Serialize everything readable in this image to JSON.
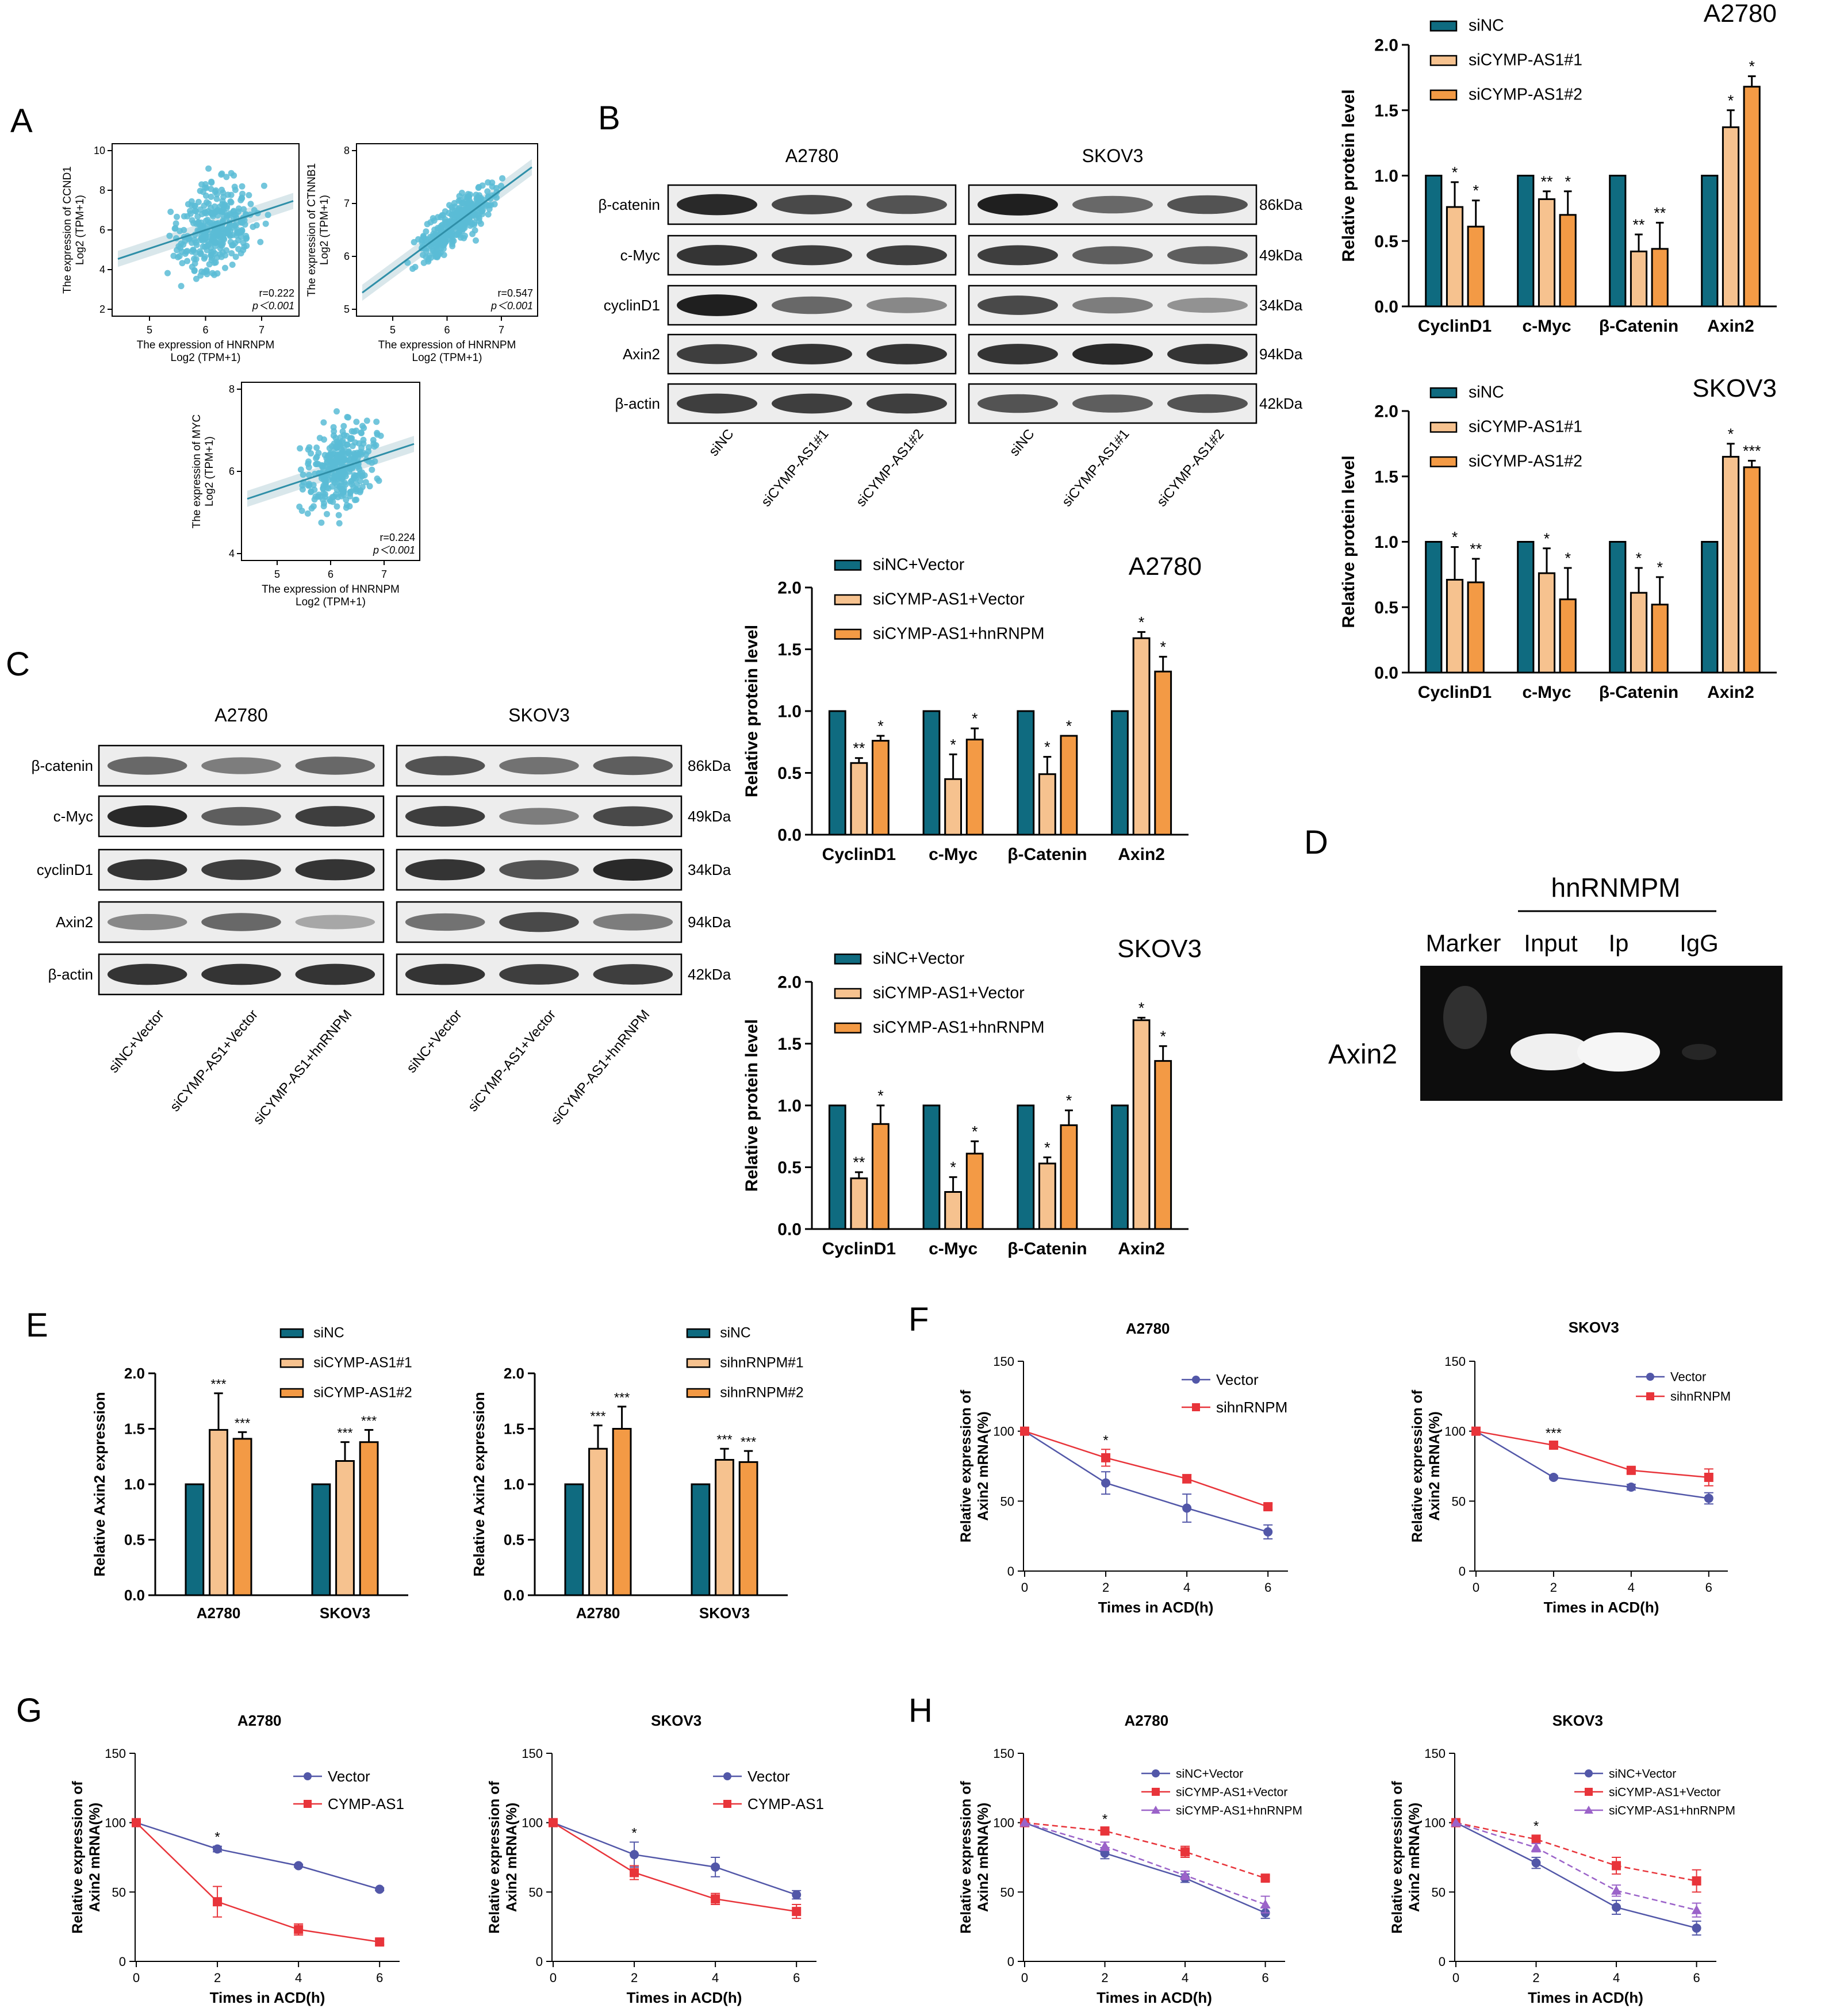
{
  "panel_letters": {
    "A": "A",
    "B": "B",
    "C": "C",
    "D": "D",
    "E": "E",
    "F": "F",
    "G": "G",
    "H": "H"
  },
  "colors": {
    "teal": "#0f6b80",
    "light": "#f6c28f",
    "orange": "#f39a45",
    "scatter": "#5bbcd6",
    "blue": "#5257a8",
    "red": "#e8343a",
    "purple": "#9b63c9",
    "gel_bg": "#0d0d0d",
    "band": "#2a2a2a"
  },
  "scatter_plots": [
    {
      "ylabel1": "The expression of CCND1",
      "ylabel2": "Log2 (TPM+1)",
      "xlabel1": "The expression of HNRNPM",
      "xlabel2": "Log2 (TPM+1)",
      "r": "r=0.222",
      "p": "p＜0.001",
      "xticks": [
        "5",
        "6",
        "7"
      ],
      "yticks": [
        "2",
        "4",
        "6",
        "8",
        "10"
      ]
    },
    {
      "ylabel1": "The expression of CTNNB1",
      "ylabel2": "Log2 (TPM+1)",
      "xlabel1": "The expression of HNRNPM",
      "xlabel2": "Log2 (TPM+1)",
      "r": "r=0.547",
      "p": "p＜0.001",
      "xticks": [
        "5",
        "6",
        "7"
      ],
      "yticks": [
        "5",
        "6",
        "7",
        "8"
      ]
    },
    {
      "ylabel1": "The expression of MYC",
      "ylabel2": "Log2 (TPM+1)",
      "xlabel1": "The expression of HNRNPM",
      "xlabel2": "Log2 (TPM+1)",
      "r": "r=0.224",
      "p": "p＜0.001",
      "xticks": [
        "5",
        "6",
        "7"
      ],
      "yticks": [
        "4",
        "6",
        "8"
      ]
    }
  ],
  "blot_B": {
    "cell_lines": [
      "A2780",
      "SKOV3"
    ],
    "proteins": [
      "β-catenin",
      "c-Myc",
      "cyclinD1",
      "Axin2",
      "β-actin"
    ],
    "sizes": [
      "86kDa",
      "49kDa",
      "34kDa",
      "94kDa",
      "42kDa"
    ],
    "lanes": [
      "siNC",
      "siCYMP-AS1#1",
      "siCYMP-AS1#2",
      "siNC",
      "siCYMP-AS1#1",
      "siCYMP-AS1#2"
    ]
  },
  "blot_C": {
    "cell_lines": [
      "A2780",
      "SKOV3"
    ],
    "proteins": [
      "β-catenin",
      "c-Myc",
      "cyclinD1",
      "Axin2",
      "β-actin"
    ],
    "sizes": [
      "86kDa",
      "49kDa",
      "34kDa",
      "94kDa",
      "42kDa"
    ],
    "lanes": [
      "siNC+Vector",
      "siCYMP-AS1+Vector",
      "siCYMP-AS1+hnRNPM",
      "siNC+Vector",
      "siCYMP-AS1+Vector",
      "siCYMP-AS1+hnRNPM"
    ]
  },
  "gel_D": {
    "title": "hnRNMPM",
    "lanes": [
      "Marker",
      "Input",
      "Ip",
      "IgG"
    ],
    "row_label": "Axin2"
  },
  "chart_data": [
    {
      "id": "B_A2780",
      "type": "bar",
      "title": "A2780",
      "ylabel": "Relative  protein level",
      "ylim": [
        0,
        2.0
      ],
      "yticks": [
        "0.0",
        "0.5",
        "1.0",
        "1.5",
        "2.0"
      ],
      "categories": [
        "CyclinD1",
        "c-Myc",
        "β-Catenin",
        "Axin2"
      ],
      "series": [
        {
          "name": "siNC",
          "values": [
            1,
            1,
            1,
            1
          ],
          "errors": [
            0,
            0,
            0,
            0
          ]
        },
        {
          "name": "siCYMP-AS1#1",
          "values": [
            0.76,
            0.82,
            0.42,
            1.37
          ],
          "errors": [
            0.19,
            0.06,
            0.13,
            0.13
          ]
        },
        {
          "name": "siCYMP-AS1#2",
          "values": [
            0.61,
            0.7,
            0.44,
            1.68
          ],
          "errors": [
            0.2,
            0.18,
            0.2,
            0.08
          ]
        }
      ],
      "stars": [
        [
          "",
          "*",
          "*"
        ],
        [
          "",
          "**",
          "*"
        ],
        [
          "",
          "**",
          "**"
        ],
        [
          "",
          "*",
          "*"
        ]
      ]
    },
    {
      "id": "B_SKOV3",
      "type": "bar",
      "title": "SKOV3",
      "ylabel": "Relative  protein level",
      "ylim": [
        0,
        2.0
      ],
      "yticks": [
        "0.0",
        "0.5",
        "1.0",
        "1.5",
        "2.0"
      ],
      "categories": [
        "CyclinD1",
        "c-Myc",
        "β-Catenin",
        "Axin2"
      ],
      "series": [
        {
          "name": "siNC",
          "values": [
            1,
            1,
            1,
            1
          ],
          "errors": [
            0,
            0,
            0,
            0
          ]
        },
        {
          "name": "siCYMP-AS1#1",
          "values": [
            0.71,
            0.76,
            0.61,
            1.65
          ],
          "errors": [
            0.25,
            0.19,
            0.19,
            0.1
          ]
        },
        {
          "name": "siCYMP-AS1#2",
          "values": [
            0.69,
            0.56,
            0.52,
            1.57
          ],
          "errors": [
            0.18,
            0.24,
            0.21,
            0.05
          ]
        }
      ],
      "stars": [
        [
          "",
          "*",
          "**"
        ],
        [
          "",
          "*",
          "*"
        ],
        [
          "",
          "*",
          "*"
        ],
        [
          "",
          "*",
          "***"
        ]
      ]
    },
    {
      "id": "C_A2780",
      "type": "bar",
      "title": "A2780",
      "ylabel": "Relative  protein level",
      "ylim": [
        0,
        2.0
      ],
      "yticks": [
        "0.0",
        "0.5",
        "1.0",
        "1.5",
        "2.0"
      ],
      "categories": [
        "CyclinD1",
        "c-Myc",
        "β-Catenin",
        "Axin2"
      ],
      "series": [
        {
          "name": "siNC+Vector",
          "values": [
            1,
            1,
            1,
            1
          ],
          "errors": [
            0,
            0,
            0,
            0
          ]
        },
        {
          "name": "siCYMP-AS1+Vector",
          "values": [
            0.58,
            0.45,
            0.49,
            1.59
          ],
          "errors": [
            0.04,
            0.2,
            0.14,
            0.05
          ]
        },
        {
          "name": "siCYMP-AS1+hnRNPM",
          "values": [
            0.76,
            0.77,
            0.8,
            1.32
          ],
          "errors": [
            0.04,
            0.09,
            0.0,
            0.12
          ]
        }
      ],
      "stars": [
        [
          "",
          "**",
          "*"
        ],
        [
          "",
          "*",
          "*"
        ],
        [
          "",
          "*",
          "*"
        ],
        [
          "",
          "*",
          "*"
        ]
      ]
    },
    {
      "id": "C_SKOV3",
      "type": "bar",
      "title": "SKOV3",
      "ylabel": "Relative  protein level",
      "ylim": [
        0,
        2.0
      ],
      "yticks": [
        "0.0",
        "0.5",
        "1.0",
        "1.5",
        "2.0"
      ],
      "categories": [
        "CyclinD1",
        "c-Myc",
        "β-Catenin",
        "Axin2"
      ],
      "series": [
        {
          "name": "siNC+Vector",
          "values": [
            1,
            1,
            1,
            1
          ],
          "errors": [
            0,
            0,
            0,
            0
          ]
        },
        {
          "name": "siCYMP-AS1+Vector",
          "values": [
            0.41,
            0.3,
            0.53,
            1.69
          ],
          "errors": [
            0.05,
            0.12,
            0.05,
            0.02
          ]
        },
        {
          "name": "siCYMP-AS1+hnRNPM",
          "values": [
            0.85,
            0.61,
            0.84,
            1.36
          ],
          "errors": [
            0.15,
            0.1,
            0.12,
            0.12
          ]
        }
      ],
      "stars": [
        [
          "",
          "**",
          "*"
        ],
        [
          "",
          "*",
          "*"
        ],
        [
          "",
          "*",
          "*"
        ],
        [
          "",
          "*",
          "*"
        ]
      ]
    },
    {
      "id": "E1",
      "type": "bar",
      "title": "",
      "ylabel": "Relative Axin2 expression",
      "ylim": [
        0,
        2.0
      ],
      "yticks": [
        "0.0",
        "0.5",
        "1.0",
        "1.5",
        "2.0"
      ],
      "categories": [
        "A2780",
        "SKOV3"
      ],
      "series": [
        {
          "name": "siNC",
          "values": [
            1,
            1
          ],
          "errors": [
            0,
            0
          ]
        },
        {
          "name": "siCYMP-AS1#1",
          "values": [
            1.49,
            1.21
          ],
          "errors": [
            0.33,
            0.17
          ]
        },
        {
          "name": "siCYMP-AS1#2",
          "values": [
            1.41,
            1.38
          ],
          "errors": [
            0.06,
            0.11
          ]
        }
      ],
      "stars": [
        [
          "",
          "***",
          "***"
        ],
        [
          "",
          "***",
          "***"
        ]
      ]
    },
    {
      "id": "E2",
      "type": "bar",
      "title": "",
      "ylabel": "Relative Axin2 expression",
      "ylim": [
        0,
        2.0
      ],
      "yticks": [
        "0.0",
        "0.5",
        "1.0",
        "1.5",
        "2.0"
      ],
      "categories": [
        "A2780",
        "SKOV3"
      ],
      "series": [
        {
          "name": "siNC",
          "values": [
            1,
            1
          ],
          "errors": [
            0,
            0
          ]
        },
        {
          "name": "sihnRNPM#1",
          "values": [
            1.32,
            1.22
          ],
          "errors": [
            0.21,
            0.1
          ]
        },
        {
          "name": "sihnRNPM#2",
          "values": [
            1.5,
            1.2
          ],
          "errors": [
            0.2,
            0.1
          ]
        }
      ],
      "stars": [
        [
          "",
          "***",
          "***"
        ],
        [
          "",
          "***",
          "***"
        ]
      ]
    },
    {
      "id": "F_A2780",
      "type": "line",
      "title": "A2780",
      "ylabel": "Relative expression of Axin2 mRNA(%)",
      "xlabel": "Times in ACD(h)",
      "x": [
        0,
        2,
        4,
        6
      ],
      "xticks": [
        "0",
        "2",
        "4",
        "6"
      ],
      "yticks": [
        "0",
        "50",
        "100",
        "150"
      ],
      "ylim": [
        0,
        150
      ],
      "series": [
        {
          "name": "Vector",
          "values": [
            100,
            63,
            45,
            28
          ],
          "errors": [
            0,
            8,
            10,
            5
          ]
        },
        {
          "name": "sihnRNPM",
          "values": [
            100,
            81,
            66,
            46
          ],
          "errors": [
            0,
            6,
            3,
            2
          ]
        }
      ],
      "stars": [
        {
          "x": 2,
          "text": "*"
        }
      ]
    },
    {
      "id": "F_SKOV3",
      "type": "line",
      "title": "SKOV3",
      "ylabel": "Relative expression of Axin2 mRNA(%)",
      "xlabel": "Times in ACD(h)",
      "x": [
        0,
        2,
        4,
        6
      ],
      "xticks": [
        "0",
        "2",
        "4",
        "6"
      ],
      "yticks": [
        "0",
        "50",
        "100",
        "150"
      ],
      "ylim": [
        0,
        150
      ],
      "series": [
        {
          "name": "Vector",
          "values": [
            100,
            67,
            60,
            52
          ],
          "errors": [
            0,
            1,
            2,
            4
          ]
        },
        {
          "name": "sihnRNPM",
          "values": [
            100,
            90,
            72,
            67
          ],
          "errors": [
            0,
            2,
            2,
            6
          ]
        }
      ],
      "stars": [
        {
          "x": 2,
          "text": "***"
        }
      ]
    },
    {
      "id": "G_A2780",
      "type": "line",
      "title": "A2780",
      "ylabel": "Relative expression of Axin2 mRNA(%)",
      "xlabel": "Times in ACD(h)",
      "x": [
        0,
        2,
        4,
        6
      ],
      "xticks": [
        "0",
        "2",
        "4",
        "6"
      ],
      "yticks": [
        "0",
        "50",
        "100",
        "150"
      ],
      "ylim": [
        0,
        150
      ],
      "series": [
        {
          "name": "Vector",
          "values": [
            100,
            81,
            69,
            52
          ],
          "errors": [
            0,
            2,
            1,
            1
          ]
        },
        {
          "name": "CYMP-AS1",
          "values": [
            100,
            43,
            23,
            14
          ],
          "errors": [
            0,
            11,
            4,
            2
          ]
        }
      ],
      "stars": [
        {
          "x": 2,
          "text": "*"
        }
      ]
    },
    {
      "id": "G_SKOV3",
      "type": "line",
      "title": "SKOV3",
      "ylabel": "Relative expression of Axin2 mRNA(%)",
      "xlabel": "Times in ACD(h)",
      "x": [
        0,
        2,
        4,
        6
      ],
      "xticks": [
        "0",
        "2",
        "4",
        "6"
      ],
      "yticks": [
        "0",
        "50",
        "100",
        "150"
      ],
      "ylim": [
        0,
        150
      ],
      "series": [
        {
          "name": "Vector",
          "values": [
            100,
            77,
            68,
            48
          ],
          "errors": [
            0,
            9,
            7,
            3
          ]
        },
        {
          "name": "CYMP-AS1",
          "values": [
            100,
            64,
            45,
            36
          ],
          "errors": [
            0,
            5,
            4,
            5
          ]
        }
      ],
      "stars": [
        {
          "x": 2,
          "text": "*"
        }
      ]
    },
    {
      "id": "H_A2780",
      "type": "line",
      "title": "A2780",
      "ylabel": "Relative expression of Axin2 mRNA(%)",
      "xlabel": "Times in ACD(h)",
      "x": [
        0,
        2,
        4,
        6
      ],
      "xticks": [
        "0",
        "2",
        "4",
        "6"
      ],
      "yticks": [
        "0",
        "50",
        "100",
        "150"
      ],
      "ylim": [
        0,
        150
      ],
      "series": [
        {
          "name": "siNC+Vector",
          "values": [
            100,
            78,
            60,
            35
          ],
          "errors": [
            0,
            4,
            3,
            4
          ]
        },
        {
          "name": "siCYMP-AS1+Vector",
          "values": [
            100,
            94,
            79,
            60
          ],
          "errors": [
            0,
            2,
            4,
            2
          ]
        },
        {
          "name": "siCYMP-AS1+hnRNPM",
          "values": [
            100,
            83,
            62,
            41
          ],
          "errors": [
            0,
            3,
            3,
            6
          ]
        }
      ],
      "stars": [
        {
          "x": 2,
          "text": "*"
        }
      ]
    },
    {
      "id": "H_SKOV3",
      "type": "line",
      "title": "SKOV3",
      "ylabel": "Relative expression of Axin2 mRNA(%)",
      "xlabel": "Times in ACD(h)",
      "x": [
        0,
        2,
        4,
        6
      ],
      "xticks": [
        "0",
        "2",
        "4",
        "6"
      ],
      "yticks": [
        "0",
        "50",
        "100",
        "150"
      ],
      "ylim": [
        0,
        150
      ],
      "series": [
        {
          "name": "siNC+Vector",
          "values": [
            100,
            71,
            39,
            24
          ],
          "errors": [
            0,
            4,
            5,
            5
          ]
        },
        {
          "name": "siCYMP-AS1+Vector",
          "values": [
            100,
            88,
            69,
            58
          ],
          "errors": [
            0,
            3,
            6,
            8
          ]
        },
        {
          "name": "siCYMP-AS1+hnRNPM",
          "values": [
            100,
            82,
            51,
            37
          ],
          "errors": [
            0,
            3,
            4,
            5
          ]
        }
      ],
      "stars": [
        {
          "x": 2,
          "text": "*"
        }
      ]
    }
  ]
}
